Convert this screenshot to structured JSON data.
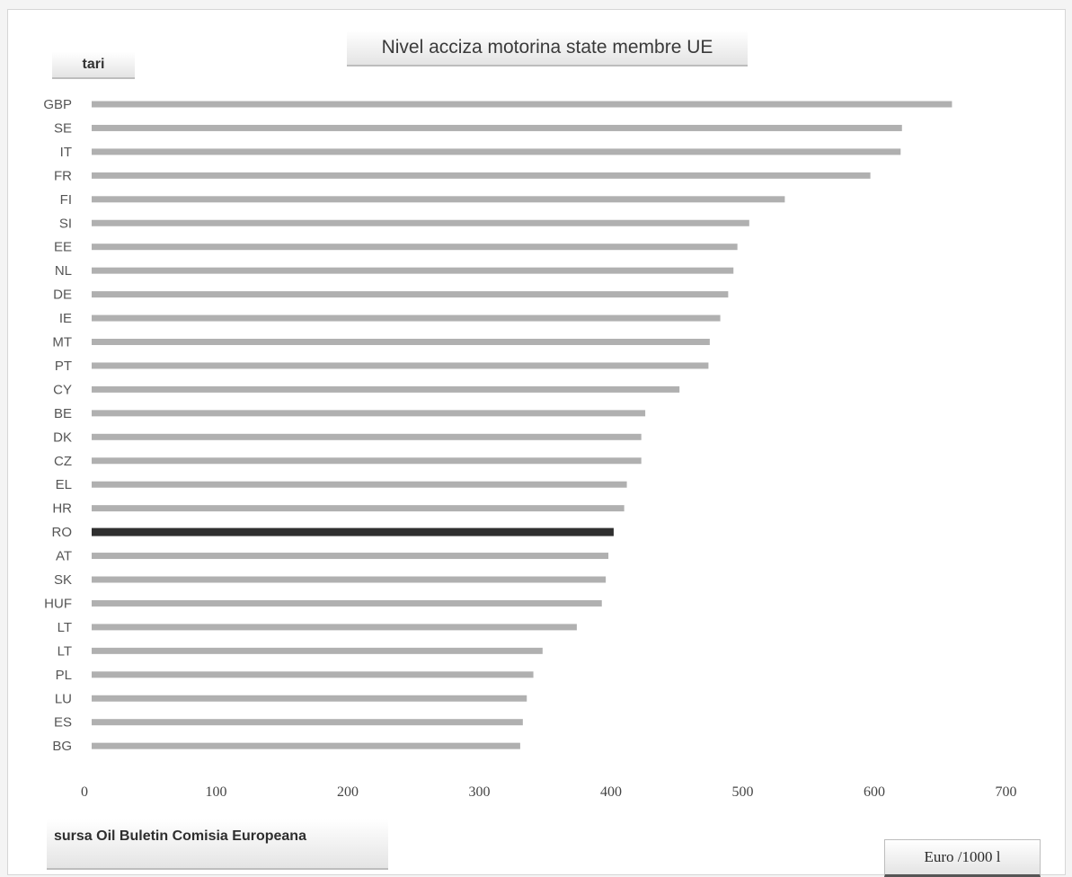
{
  "chart_data": {
    "type": "bar",
    "orientation": "horizontal",
    "title": "Nivel acciza motorina state membre UE",
    "ylabel": "tari",
    "xlabel": "Euro /1000 l",
    "source": "sursa Oil Buletin Comisia Europeana",
    "categories": [
      "GBP",
      "SE",
      "IT",
      "FR",
      "FI",
      "SI",
      "EE",
      "NL",
      "DE",
      "IE",
      "MT",
      "PT",
      "CY",
      "BE",
      "DK",
      "CZ",
      "EL",
      "HR",
      "RO",
      "AT",
      "SK",
      "HUF",
      "LT",
      "LT",
      "PL",
      "LU",
      "ES",
      "BG"
    ],
    "values": [
      659,
      621,
      620,
      597,
      532,
      505,
      496,
      493,
      489,
      483,
      475,
      474,
      452,
      426,
      423,
      423,
      412,
      410,
      402,
      398,
      396,
      393,
      374,
      348,
      341,
      336,
      333,
      331
    ],
    "highlight": "RO",
    "xlim": [
      0,
      700
    ],
    "xticks": [
      0,
      100,
      200,
      300,
      400,
      500,
      600,
      700
    ],
    "grid": false,
    "legend": "none",
    "colors": {
      "bar": "#b0b0b0",
      "highlight": "#2f2f2f"
    }
  }
}
